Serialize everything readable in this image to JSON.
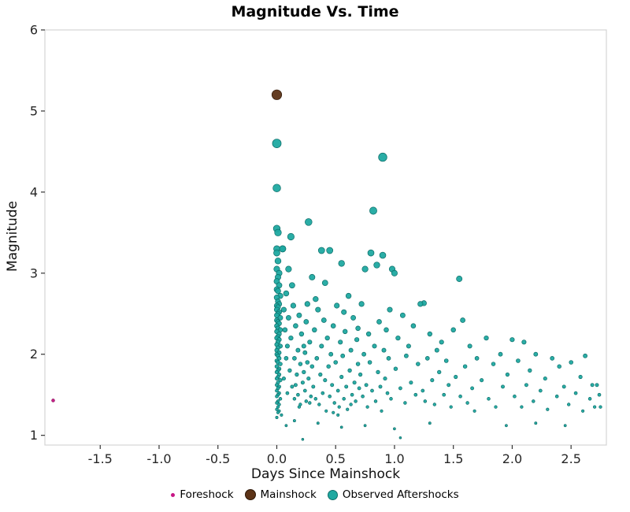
{
  "chart_data": {
    "type": "scatter",
    "title": "Magnitude Vs. Time",
    "xlabel": "Days Since Mainshock",
    "ylabel": "Magnitude",
    "xlim": [
      -1.97,
      2.8
    ],
    "ylim": [
      0.88,
      6.0
    ],
    "x_ticks": [
      "-1.5",
      "-1.0",
      "-0.5",
      "0.0",
      "0.5",
      "1.0",
      "1.5",
      "2.0",
      "2.5"
    ],
    "x_tick_values": [
      -1.5,
      -1.0,
      -0.5,
      0.0,
      0.5,
      1.0,
      1.5,
      2.0,
      2.5
    ],
    "y_ticks": [
      "1",
      "2",
      "3",
      "4",
      "5",
      "6"
    ],
    "y_tick_values": [
      1,
      2,
      3,
      4,
      5,
      6
    ],
    "grid": false,
    "legend_position": "bottom",
    "border_color": "#d4d4d4",
    "series": [
      {
        "name": "Foreshock",
        "color": "#C71585",
        "stroke": "#8a0e5c",
        "points": [
          [
            -1.9,
            1.43
          ]
        ]
      },
      {
        "name": "Mainshock",
        "color": "#5C3317",
        "stroke": "#2e1808",
        "points": [
          [
            0.0,
            5.2
          ]
        ]
      },
      {
        "name": "Observed Aftershocks",
        "color": "#1FA9A1",
        "stroke": "#0E6E69",
        "points": [
          [
            0,
            4.6
          ],
          [
            0,
            4.05
          ],
          [
            0.9,
            4.43
          ],
          [
            0.82,
            3.77
          ],
          [
            0.27,
            3.63
          ],
          [
            0,
            3.55
          ],
          [
            0.01,
            3.5
          ],
          [
            0.12,
            3.45
          ],
          [
            0.05,
            3.3
          ],
          [
            0.38,
            3.28
          ],
          [
            0.45,
            3.28
          ],
          [
            0.8,
            3.25
          ],
          [
            0.9,
            3.22
          ],
          [
            0.55,
            3.12
          ],
          [
            0.85,
            3.1
          ],
          [
            0.75,
            3.05
          ],
          [
            0.98,
            3.05
          ],
          [
            1.0,
            3.0
          ],
          [
            1.55,
            2.93
          ],
          [
            0.3,
            2.95
          ],
          [
            0.1,
            3.05
          ],
          [
            0.41,
            2.88
          ],
          [
            1.25,
            2.63
          ],
          [
            1.22,
            2.62
          ],
          [
            2.1,
            2.15
          ],
          [
            2.0,
            2.18
          ],
          [
            0.0,
            3.3
          ],
          [
            0.0,
            3.25
          ],
          [
            0.01,
            3.15
          ],
          [
            0.0,
            3.05
          ],
          [
            0.02,
            3.0
          ],
          [
            0.01,
            2.95
          ],
          [
            0.0,
            2.9
          ],
          [
            0.02,
            2.85
          ],
          [
            0.0,
            2.8
          ],
          [
            0.01,
            2.78
          ],
          [
            0.03,
            2.72
          ],
          [
            0.0,
            2.7
          ],
          [
            0.01,
            2.65
          ],
          [
            0.02,
            2.62
          ],
          [
            0.0,
            2.6
          ],
          [
            0.01,
            2.58
          ],
          [
            0.0,
            2.55
          ],
          [
            0.02,
            2.52
          ],
          [
            0.01,
            2.5
          ],
          [
            0.0,
            2.48
          ],
          [
            0.03,
            2.45
          ],
          [
            0.0,
            2.42
          ],
          [
            0.01,
            2.4
          ],
          [
            0.02,
            2.38
          ],
          [
            0.0,
            2.35
          ],
          [
            0.01,
            2.32
          ],
          [
            0.03,
            2.3
          ],
          [
            0.0,
            2.28
          ],
          [
            0.02,
            2.25
          ],
          [
            0.01,
            2.22
          ],
          [
            0.0,
            2.2
          ],
          [
            0.02,
            2.18
          ],
          [
            0.01,
            2.15
          ],
          [
            0.0,
            2.12
          ],
          [
            0.03,
            2.1
          ],
          [
            0.01,
            2.08
          ],
          [
            0.0,
            2.05
          ],
          [
            0.02,
            2.02
          ],
          [
            0.0,
            2.0
          ],
          [
            0.01,
            1.98
          ],
          [
            0.02,
            1.95
          ],
          [
            0.0,
            1.92
          ],
          [
            0.01,
            1.9
          ],
          [
            0.03,
            1.88
          ],
          [
            0.0,
            1.85
          ],
          [
            0.02,
            1.82
          ],
          [
            0.01,
            1.8
          ],
          [
            0.0,
            1.78
          ],
          [
            0.02,
            1.75
          ],
          [
            0.01,
            1.72
          ],
          [
            0.0,
            1.7
          ],
          [
            0.03,
            1.68
          ],
          [
            0.01,
            1.65
          ],
          [
            0.0,
            1.62
          ],
          [
            0.02,
            1.6
          ],
          [
            0.01,
            1.58
          ],
          [
            0.0,
            1.55
          ],
          [
            0.02,
            1.52
          ],
          [
            0.01,
            1.5
          ],
          [
            0.0,
            1.48
          ],
          [
            0.03,
            1.45
          ],
          [
            0.01,
            1.42
          ],
          [
            0.0,
            1.4
          ],
          [
            0.02,
            1.38
          ],
          [
            0.01,
            1.35
          ],
          [
            0.0,
            1.32
          ],
          [
            0.02,
            1.3
          ],
          [
            0.01,
            1.28
          ],
          [
            0.04,
            1.25
          ],
          [
            0.0,
            1.22
          ],
          [
            0.05,
            3.3
          ],
          [
            0.06,
            2.55
          ],
          [
            0.07,
            2.3
          ],
          [
            0.08,
            2.75
          ],
          [
            0.08,
            1.95
          ],
          [
            0.09,
            2.1
          ],
          [
            0.1,
            2.45
          ],
          [
            0.11,
            1.8
          ],
          [
            0.12,
            2.2
          ],
          [
            0.13,
            1.6
          ],
          [
            0.14,
            2.6
          ],
          [
            0.15,
            1.95
          ],
          [
            0.15,
            1.45
          ],
          [
            0.16,
            2.35
          ],
          [
            0.17,
            1.75
          ],
          [
            0.18,
            2.05
          ],
          [
            0.18,
            1.5
          ],
          [
            0.19,
            2.48
          ],
          [
            0.2,
            1.88
          ],
          [
            0.2,
            1.38
          ],
          [
            0.21,
            2.25
          ],
          [
            0.22,
            0.95
          ],
          [
            0.22,
            1.65
          ],
          [
            0.23,
            2.1
          ],
          [
            0.24,
            1.55
          ],
          [
            0.25,
            2.4
          ],
          [
            0.25,
            1.42
          ],
          [
            0.26,
            1.9
          ],
          [
            0.27,
            1.7
          ],
          [
            0.28,
            2.15
          ],
          [
            0.29,
            1.48
          ],
          [
            0.3,
            1.85
          ],
          [
            0.06,
            1.7
          ],
          [
            0.09,
            1.52
          ],
          [
            0.13,
            2.85
          ],
          [
            0.16,
            1.62
          ],
          [
            0.19,
            1.35
          ],
          [
            0.23,
            1.78
          ],
          [
            0.26,
            2.62
          ],
          [
            0.28,
            1.4
          ],
          [
            0.24,
            2.02
          ],
          [
            0.31,
            1.6
          ],
          [
            0.32,
            2.3
          ],
          [
            0.33,
            1.45
          ],
          [
            0.34,
            1.95
          ],
          [
            0.35,
            2.55
          ],
          [
            0.36,
            1.38
          ],
          [
            0.37,
            1.75
          ],
          [
            0.38,
            2.1
          ],
          [
            0.39,
            1.52
          ],
          [
            0.4,
            2.42
          ],
          [
            0.41,
            1.68
          ],
          [
            0.42,
            1.3
          ],
          [
            0.43,
            2.2
          ],
          [
            0.44,
            1.85
          ],
          [
            0.45,
            1.48
          ],
          [
            0.46,
            2.0
          ],
          [
            0.47,
            1.62
          ],
          [
            0.48,
            2.35
          ],
          [
            0.49,
            1.4
          ],
          [
            0.5,
            1.9
          ],
          [
            0.51,
            2.6
          ],
          [
            0.52,
            1.55
          ],
          [
            0.53,
            1.35
          ],
          [
            0.54,
            2.15
          ],
          [
            0.55,
            1.72
          ],
          [
            0.56,
            1.98
          ],
          [
            0.57,
            1.45
          ],
          [
            0.58,
            2.28
          ],
          [
            0.59,
            1.6
          ],
          [
            0.6,
            1.32
          ],
          [
            0.61,
            2.72
          ],
          [
            0.62,
            1.8
          ],
          [
            0.63,
            2.05
          ],
          [
            0.64,
            1.5
          ],
          [
            0.65,
            2.45
          ],
          [
            0.66,
            1.65
          ],
          [
            0.67,
            1.42
          ],
          [
            0.68,
            2.18
          ],
          [
            0.69,
            1.88
          ],
          [
            0.7,
            1.58
          ],
          [
            0.33,
            2.68
          ],
          [
            0.48,
            1.28
          ],
          [
            0.57,
            2.52
          ],
          [
            0.63,
            1.38
          ],
          [
            0.69,
            2.32
          ],
          [
            0.52,
            1.25
          ],
          [
            0.71,
            1.75
          ],
          [
            0.72,
            2.62
          ],
          [
            0.73,
            1.48
          ],
          [
            0.74,
            2.0
          ],
          [
            0.76,
            1.62
          ],
          [
            0.77,
            1.35
          ],
          [
            0.78,
            2.25
          ],
          [
            0.79,
            1.9
          ],
          [
            0.81,
            1.55
          ],
          [
            0.83,
            2.1
          ],
          [
            0.84,
            1.42
          ],
          [
            0.86,
            1.78
          ],
          [
            0.87,
            2.4
          ],
          [
            0.88,
            1.6
          ],
          [
            0.89,
            1.3
          ],
          [
            0.91,
            2.05
          ],
          [
            0.92,
            1.7
          ],
          [
            0.93,
            2.3
          ],
          [
            0.94,
            1.52
          ],
          [
            0.95,
            1.95
          ],
          [
            0.96,
            2.55
          ],
          [
            0.97,
            1.45
          ],
          [
            1.01,
            1.82
          ],
          [
            1.03,
            2.2
          ],
          [
            1.05,
            0.97
          ],
          [
            1.05,
            1.58
          ],
          [
            1.07,
            2.48
          ],
          [
            1.09,
            1.4
          ],
          [
            1.1,
            1.98
          ],
          [
            1.12,
            2.1
          ],
          [
            1.14,
            1.65
          ],
          [
            1.16,
            2.35
          ],
          [
            1.18,
            1.5
          ],
          [
            1.2,
            1.88
          ],
          [
            1.24,
            1.55
          ],
          [
            1.26,
            1.42
          ],
          [
            1.28,
            1.95
          ],
          [
            1.3,
            2.25
          ],
          [
            1.32,
            1.68
          ],
          [
            1.34,
            1.38
          ],
          [
            1.36,
            2.05
          ],
          [
            1.38,
            1.78
          ],
          [
            1.4,
            2.15
          ],
          [
            1.42,
            1.5
          ],
          [
            1.44,
            1.92
          ],
          [
            1.46,
            1.62
          ],
          [
            1.48,
            1.35
          ],
          [
            1.5,
            2.3
          ],
          [
            1.52,
            1.72
          ],
          [
            1.56,
            1.48
          ],
          [
            1.58,
            2.42
          ],
          [
            1.6,
            1.85
          ],
          [
            1.62,
            1.4
          ],
          [
            1.64,
            2.1
          ],
          [
            1.66,
            1.58
          ],
          [
            1.68,
            1.3
          ],
          [
            1.7,
            1.95
          ],
          [
            1.74,
            1.68
          ],
          [
            1.78,
            2.2
          ],
          [
            1.8,
            1.45
          ],
          [
            1.84,
            1.88
          ],
          [
            1.86,
            1.35
          ],
          [
            1.9,
            2.0
          ],
          [
            1.92,
            1.6
          ],
          [
            1.96,
            1.75
          ],
          [
            2.02,
            1.48
          ],
          [
            2.05,
            1.92
          ],
          [
            2.08,
            1.35
          ],
          [
            2.12,
            1.62
          ],
          [
            2.15,
            1.8
          ],
          [
            2.18,
            1.42
          ],
          [
            2.2,
            2.0
          ],
          [
            2.24,
            1.55
          ],
          [
            2.28,
            1.7
          ],
          [
            2.3,
            1.32
          ],
          [
            2.34,
            1.95
          ],
          [
            2.38,
            1.48
          ],
          [
            2.4,
            1.85
          ],
          [
            2.44,
            1.6
          ],
          [
            2.48,
            1.38
          ],
          [
            2.5,
            1.9
          ],
          [
            2.54,
            1.52
          ],
          [
            2.58,
            1.72
          ],
          [
            2.6,
            1.3
          ],
          [
            2.62,
            1.98
          ],
          [
            2.66,
            1.45
          ],
          [
            2.68,
            1.62
          ],
          [
            2.7,
            1.35
          ],
          [
            2.72,
            1.62
          ],
          [
            2.74,
            1.5
          ],
          [
            2.75,
            1.35
          ],
          [
            2.2,
            1.15
          ],
          [
            2.45,
            1.12
          ],
          [
            1.95,
            1.12
          ],
          [
            0.35,
            1.15
          ],
          [
            0.55,
            1.1
          ],
          [
            0.75,
            1.12
          ],
          [
            1.0,
            1.08
          ],
          [
            1.3,
            1.15
          ],
          [
            0.15,
            1.18
          ],
          [
            0.08,
            1.12
          ]
        ]
      }
    ]
  },
  "legend": {
    "items": [
      {
        "label": "Foreshock"
      },
      {
        "label": "Mainshock"
      },
      {
        "label": "Observed Aftershocks"
      }
    ]
  }
}
